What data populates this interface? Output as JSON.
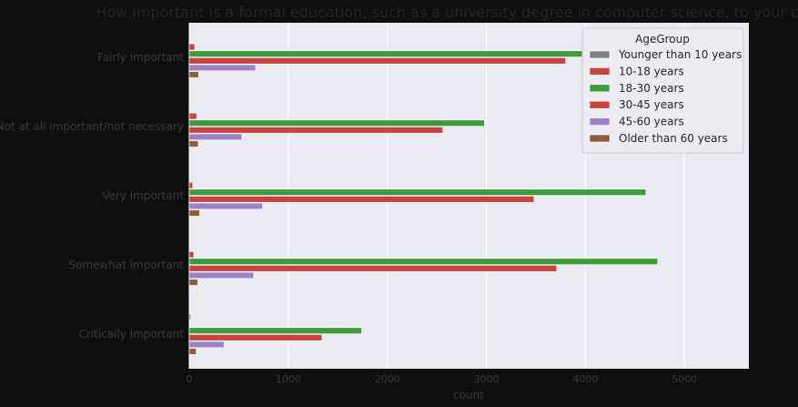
{
  "chart_data": {
    "type": "bar",
    "orientation": "horizontal",
    "title": "How important is a formal education, such as a university degree in computer science, to your career?",
    "xlabel": "count",
    "ylabel": "",
    "xlim": [
      0,
      5650
    ],
    "xticks": [
      0,
      1000,
      2000,
      3000,
      4000,
      5000
    ],
    "grid": true,
    "categories": [
      "Fairly important",
      "Not at all important/not necessary",
      "Very important",
      "Somewhat important",
      "Critically important"
    ],
    "legend": {
      "title": "AgeGroup",
      "position": "top-right"
    },
    "series": [
      {
        "name": "Younger than 10 years",
        "color": "#808080",
        "values": [
          0,
          0,
          0,
          0,
          15
        ]
      },
      {
        "name": "10-18 years",
        "color": "#c9423f",
        "values": [
          55,
          75,
          35,
          45,
          0
        ]
      },
      {
        "name": "18-30 years",
        "color": "#3d9b3d",
        "values": [
          5380,
          2980,
          4610,
          4730,
          1740
        ]
      },
      {
        "name": "30-45 years",
        "color": "#c9423f",
        "values": [
          3800,
          2560,
          3480,
          3710,
          1340
        ]
      },
      {
        "name": "45-60 years",
        "color": "#9c82c2",
        "values": [
          670,
          530,
          740,
          650,
          350
        ]
      },
      {
        "name": "Older than 60 years",
        "color": "#8b5e3c",
        "values": [
          95,
          90,
          105,
          85,
          70
        ]
      }
    ]
  }
}
